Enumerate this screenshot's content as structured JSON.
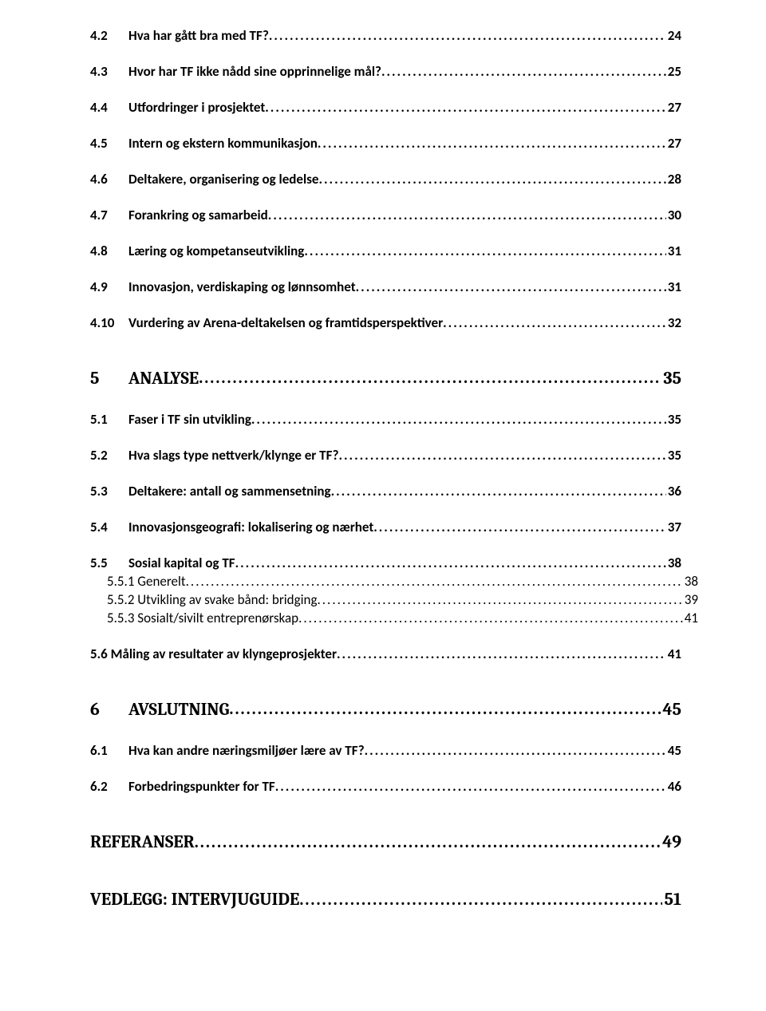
{
  "typography": {
    "body_font": "Calibri",
    "heading_font": "Cambria",
    "body_size_pt": 12,
    "heading_size_pt": 16,
    "text_color": "#000000",
    "background_color": "#ffffff",
    "leader_char": "."
  },
  "toc": {
    "r0": {
      "num": "4.2",
      "title": "Hva har gått bra med TF?",
      "page": "24"
    },
    "r1": {
      "num": "4.3",
      "title": "Hvor har TF ikke nådd sine opprinnelige mål?",
      "page": "25"
    },
    "r2": {
      "num": "4.4",
      "title": "Utfordringer i prosjektet",
      "page": "27"
    },
    "r3": {
      "num": "4.5",
      "title": "Intern og ekstern kommunikasjon",
      "page": "27"
    },
    "r4": {
      "num": "4.6",
      "title": "Deltakere, organisering og ledelse",
      "page": "28"
    },
    "r5": {
      "num": "4.7",
      "title": "Forankring og samarbeid",
      "page": "30"
    },
    "r6": {
      "num": "4.8",
      "title": "Læring og kompetanseutvikling",
      "page": "31"
    },
    "r7": {
      "num": "4.9",
      "title": "Innovasjon, verdiskaping og lønnsomhet",
      "page": "31"
    },
    "r8": {
      "num": "4.10",
      "title": "Vurdering av Arena-deltakelsen og framtidsperspektiver",
      "page": "32"
    },
    "r9": {
      "num": "5",
      "title": "ANALYSE",
      "page": "35"
    },
    "r10": {
      "num": "5.1",
      "title": "Faser i TF sin utvikling",
      "page": "35"
    },
    "r11": {
      "num": "5.2",
      "title": "Hva slags type nettverk/klynge er TF?",
      "page": "35"
    },
    "r12": {
      "num": "5.3",
      "title": "Deltakere: antall og sammensetning",
      "page": "36"
    },
    "r13": {
      "num": "5.4",
      "title": "Innovasjonsgeografi: lokalisering og nærhet",
      "page": "37"
    },
    "r14": {
      "num": "5.5",
      "title": "Sosial kapital og TF",
      "page": "38"
    },
    "r15": {
      "num": "",
      "title": "5.5.1 Generelt",
      "page": "38"
    },
    "r16": {
      "num": "",
      "title": "5.5.2 Utvikling av svake bånd: bridging",
      "page": "39"
    },
    "r17": {
      "num": "",
      "title": "5.5.3 Sosialt/sivilt entreprenørskap",
      "page": "41"
    },
    "r18": {
      "num": "",
      "title": "5.6 Måling av resultater av klyngeprosjekter",
      "page": "41"
    },
    "r19": {
      "num": "6",
      "title": "AVSLUTNING",
      "page": "45"
    },
    "r20": {
      "num": "6.1",
      "title": "Hva kan andre næringsmiljøer lære av TF?",
      "page": "45"
    },
    "r21": {
      "num": "6.2",
      "title": "Forbedringspunkter for TF",
      "page": "46"
    },
    "r22": {
      "num": "",
      "title": "REFERANSER",
      "page": "49"
    },
    "r23": {
      "num": "",
      "title": "VEDLEGG: INTERVJUGUIDE",
      "page": "51"
    }
  }
}
